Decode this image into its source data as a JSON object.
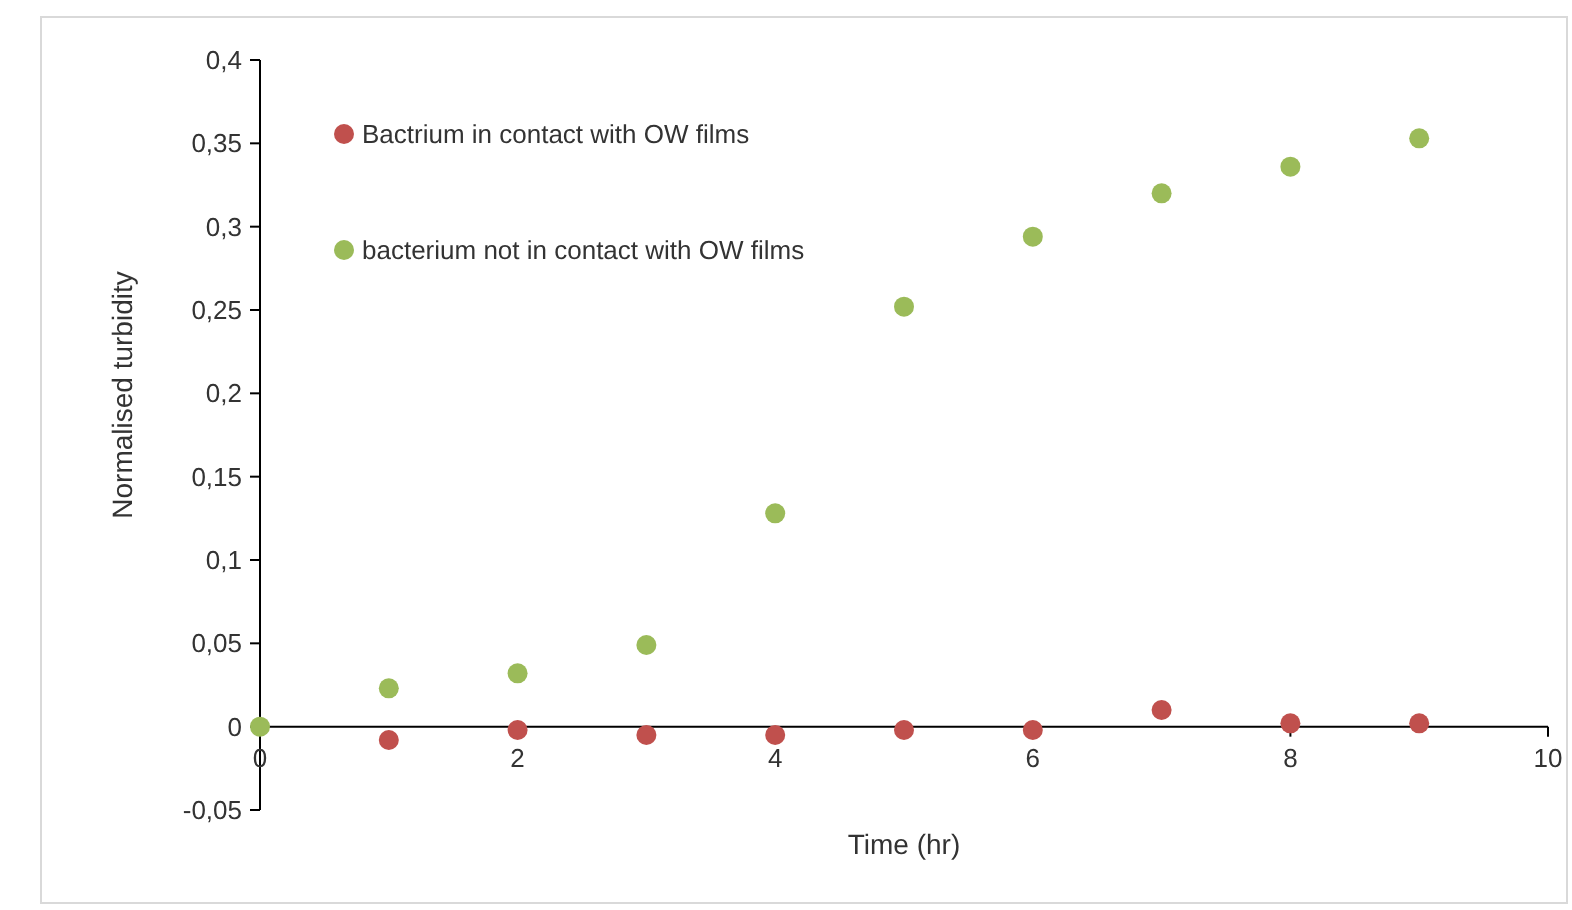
{
  "chart_data": {
    "type": "scatter",
    "xlabel": "Time (hr)",
    "ylabel": "Normalised turbidity",
    "x": [
      0,
      1,
      2,
      3,
      4,
      5,
      6,
      7,
      8,
      9
    ],
    "series": [
      {
        "name": "Bactrium in contact with OW films",
        "color": "#c0504d",
        "values": [
          null,
          -0.008,
          -0.002,
          -0.005,
          -0.005,
          -0.002,
          -0.002,
          0.01,
          0.002,
          0.002
        ]
      },
      {
        "name": "bacterium not in contact with OW films",
        "color": "#9bbb59",
        "values": [
          0,
          0.023,
          0.032,
          0.049,
          0.128,
          0.252,
          0.294,
          0.32,
          0.336,
          0.353
        ]
      }
    ],
    "xlim": [
      0,
      10
    ],
    "xticks": [
      0,
      2,
      4,
      6,
      8,
      10
    ],
    "ylim": [
      -0.05,
      0.4
    ],
    "yticks": [
      {
        "value": -0.05,
        "label": "-0,05"
      },
      {
        "value": 0,
        "label": "0"
      },
      {
        "value": 0.05,
        "label": "0,05"
      },
      {
        "value": 0.1,
        "label": "0,1"
      },
      {
        "value": 0.15,
        "label": "0,15"
      },
      {
        "value": 0.2,
        "label": "0,2"
      },
      {
        "value": 0.25,
        "label": "0,25"
      },
      {
        "value": 0.3,
        "label": "0,3"
      },
      {
        "value": 0.35,
        "label": "0,35"
      },
      {
        "value": 0.4,
        "label": "0,4"
      }
    ],
    "grid": false,
    "legend": "top left",
    "marker": "circle"
  }
}
